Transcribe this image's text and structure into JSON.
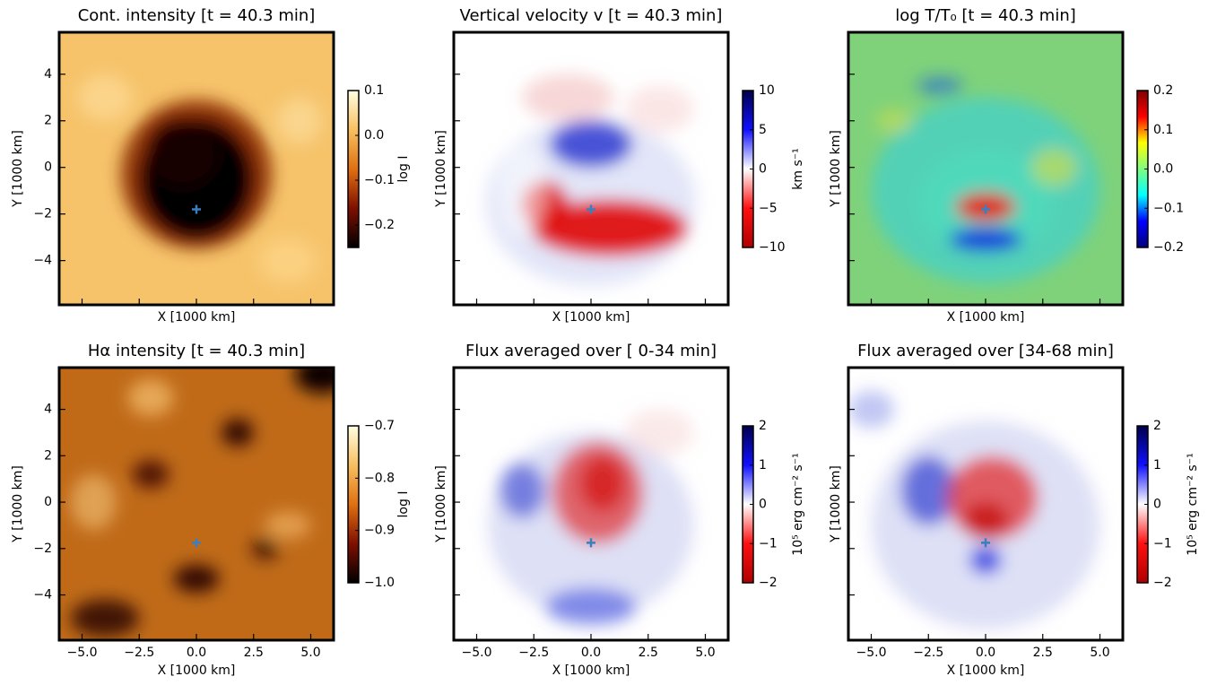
{
  "chart_data": [
    {
      "type": "heatmap",
      "title": "Cont. intensity [t = 40.3 min]",
      "xlabel": "X [1000 km]",
      "ylabel": "Y [1000 km]",
      "xlim": [
        -6,
        6
      ],
      "ylim": [
        -5.9,
        5.8
      ],
      "xticks": [
        -5,
        -2.5,
        0,
        2.5,
        5
      ],
      "show_xticklabels": false,
      "yticks": [
        {
          "value": -4,
          "label": "−4"
        },
        {
          "value": -2,
          "label": "−2"
        },
        0,
        2,
        4
      ],
      "show_yticklabels": true,
      "marker": {
        "x": 0,
        "y": -1.8,
        "color": "#3a7fc0"
      },
      "colorbar": {
        "label": "log I",
        "lim": [
          -0.25,
          0.1
        ],
        "ticks": [
          {
            "value": -0.2,
            "label": "−0.2"
          },
          {
            "value": -0.1,
            "label": "−0.1"
          },
          {
            "value": 0,
            "label": "0.0"
          },
          0.1
        ],
        "colormap": [
          "#000000",
          "#801000",
          "#e07010",
          "#f8c060",
          "#ffffe0"
        ]
      }
    },
    {
      "type": "heatmap",
      "title": "Vertical velocity v [t = 40.3 min]",
      "xlabel": "X [1000 km]",
      "ylabel": "Y [1000 km]",
      "xlim": [
        -6,
        6
      ],
      "ylim": [
        -5.9,
        5.8
      ],
      "xticks": [
        -5,
        -2.5,
        0,
        2.5,
        5
      ],
      "show_xticklabels": false,
      "yticks": [
        -4,
        -2,
        0,
        2,
        4
      ],
      "show_yticklabels": false,
      "marker": {
        "x": 0,
        "y": -1.8,
        "color": "#3a7fc0"
      },
      "colorbar": {
        "label": "km s⁻¹",
        "lim": [
          -10,
          10
        ],
        "ticks": [
          {
            "value": -10,
            "label": "−10"
          },
          {
            "value": -5,
            "label": "−5"
          },
          0,
          5,
          10
        ],
        "colormap": [
          "#b00000",
          "#ff1010",
          "#ffffff",
          "#1010ff",
          "#00004c"
        ]
      }
    },
    {
      "type": "heatmap",
      "title": "log T/T₀ [t = 40.3 min]",
      "xlabel": "X [1000 km]",
      "ylabel": "Y [1000 km]",
      "xlim": [
        -6,
        6
      ],
      "ylim": [
        -5.9,
        5.8
      ],
      "xticks": [
        -5,
        -2.5,
        0,
        2.5,
        5
      ],
      "show_xticklabels": false,
      "yticks": [
        -4,
        -2,
        0,
        2,
        4
      ],
      "show_yticklabels": false,
      "marker": {
        "x": 0,
        "y": -1.8,
        "color": "#3a7fc0"
      },
      "colorbar": {
        "lim": [
          -0.2,
          0.2
        ],
        "ticks": [
          {
            "value": -0.2,
            "label": "−0.2"
          },
          {
            "value": -0.1,
            "label": "−0.1"
          },
          {
            "value": 0,
            "label": "0.0"
          },
          0.1,
          0.2
        ],
        "colormap": [
          "#00007f",
          "#0000ff",
          "#00ffff",
          "#7fff7f",
          "#ffff00",
          "#ff0000",
          "#7f0000"
        ]
      }
    },
    {
      "type": "heatmap",
      "title": "Hα intensity [t = 40.3 min]",
      "xlabel": "X [1000 km]",
      "ylabel": "Y [1000 km]",
      "xlim": [
        -6,
        6
      ],
      "ylim": [
        -5.95,
        5.8
      ],
      "xticks": [
        {
          "value": -5,
          "label": "−5.0"
        },
        {
          "value": -2.5,
          "label": "−2.5"
        },
        {
          "value": 0,
          "label": "0.0"
        },
        2.5,
        {
          "value": 5,
          "label": "5.0"
        }
      ],
      "show_xticklabels": true,
      "yticks": [
        {
          "value": -4,
          "label": "−4"
        },
        {
          "value": -2,
          "label": "−2"
        },
        0,
        2,
        4
      ],
      "show_yticklabels": true,
      "marker": {
        "x": 0,
        "y": -1.75,
        "color": "#3a7fc0"
      },
      "colorbar": {
        "label": "log I",
        "lim": [
          -1.0,
          -0.7
        ],
        "ticks": [
          {
            "value": -1.0,
            "label": "−1.0"
          },
          {
            "value": -0.9,
            "label": "−0.9"
          },
          {
            "value": -0.8,
            "label": "−0.8"
          },
          {
            "value": -0.7,
            "label": "−0.7"
          }
        ],
        "colormap": [
          "#000000",
          "#801000",
          "#e07010",
          "#f8c060",
          "#ffffe0"
        ]
      }
    },
    {
      "type": "heatmap",
      "title": "Flux averaged over [ 0-34 min]",
      "xlabel": "X [1000 km]",
      "ylabel": "Y [1000 km]",
      "xlim": [
        -6,
        6
      ],
      "ylim": [
        -5.95,
        5.8
      ],
      "xticks": [
        {
          "value": -5,
          "label": "−5.0"
        },
        {
          "value": -2.5,
          "label": "−2.5"
        },
        {
          "value": 0,
          "label": "0.0"
        },
        2.5,
        {
          "value": 5,
          "label": "5.0"
        }
      ],
      "show_xticklabels": true,
      "yticks": [
        -4,
        -2,
        0,
        2,
        4
      ],
      "show_yticklabels": false,
      "marker": {
        "x": 0,
        "y": -1.75,
        "color": "#3a7fc0"
      },
      "colorbar": {
        "label": "10⁵ erg cm⁻² s⁻¹",
        "lim": [
          -2,
          2
        ],
        "ticks": [
          {
            "value": -2,
            "label": "−2"
          },
          {
            "value": -1,
            "label": "−1"
          },
          0,
          1,
          2
        ],
        "colormap": [
          "#b00000",
          "#ff1010",
          "#ffffff",
          "#1010ff",
          "#00004c"
        ]
      }
    },
    {
      "type": "heatmap",
      "title": "Flux averaged over [34-68 min]",
      "xlabel": "X [1000 km]",
      "ylabel": "Y [1000 km]",
      "xlim": [
        -6,
        6
      ],
      "ylim": [
        -5.95,
        5.8
      ],
      "xticks": [
        {
          "value": -5,
          "label": "−5.0"
        },
        {
          "value": -2.5,
          "label": "−2.5"
        },
        {
          "value": 0,
          "label": "0.0"
        },
        2.5,
        {
          "value": 5,
          "label": "5.0"
        }
      ],
      "show_xticklabels": true,
      "yticks": [
        -4,
        -2,
        0,
        2,
        4
      ],
      "show_yticklabels": false,
      "marker": {
        "x": 0,
        "y": -1.75,
        "color": "#3a7fc0"
      },
      "colorbar": {
        "label": "10⁵ erg cm⁻² s⁻¹",
        "lim": [
          -2,
          2
        ],
        "ticks": [
          {
            "value": -2,
            "label": "−2"
          },
          {
            "value": -1,
            "label": "−1"
          },
          0,
          1,
          2
        ],
        "colormap": [
          "#b00000",
          "#ff1010",
          "#ffffff",
          "#1010ff",
          "#00004c"
        ]
      }
    }
  ]
}
